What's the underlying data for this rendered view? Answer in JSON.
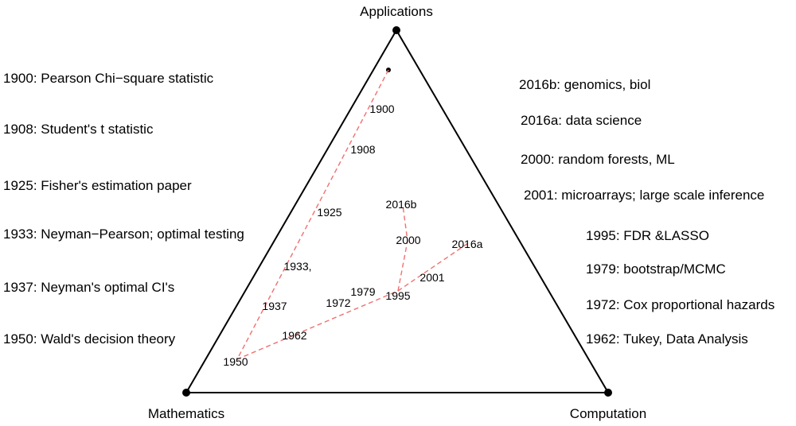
{
  "corners": {
    "applications": "Applications",
    "mathematics": "Mathematics",
    "computation": "Computation"
  },
  "left_legend": [
    "1900:  Pearson Chi−square statistic",
    "1908:  Student's t statistic",
    "1925:  Fisher's estimation paper",
    "1933:  Neyman−Pearson; optimal testing",
    "1937:  Neyman's optimal CI's",
    "1950:  Wald's decision theory"
  ],
  "right_legend": [
    "2016b:  genomics, biol",
    "2016a:  data science",
    "2000:  random forests, ML",
    "2001:  microarrays; large scale inference",
    "1995:  FDR &LASSO",
    "1979:  bootstrap/MCMC",
    "1972:  Cox proportional hazards",
    "1962:  Tukey, Data Analysis"
  ],
  "year_labels": [
    "1900",
    "1908",
    "1925",
    "1933,",
    "1937",
    "1950",
    "1962",
    "1972",
    "1979",
    "1995",
    "2001",
    "2016a",
    "2000",
    "2016b"
  ],
  "colors": {
    "path": "#f07070",
    "triangle": "#000000"
  }
}
